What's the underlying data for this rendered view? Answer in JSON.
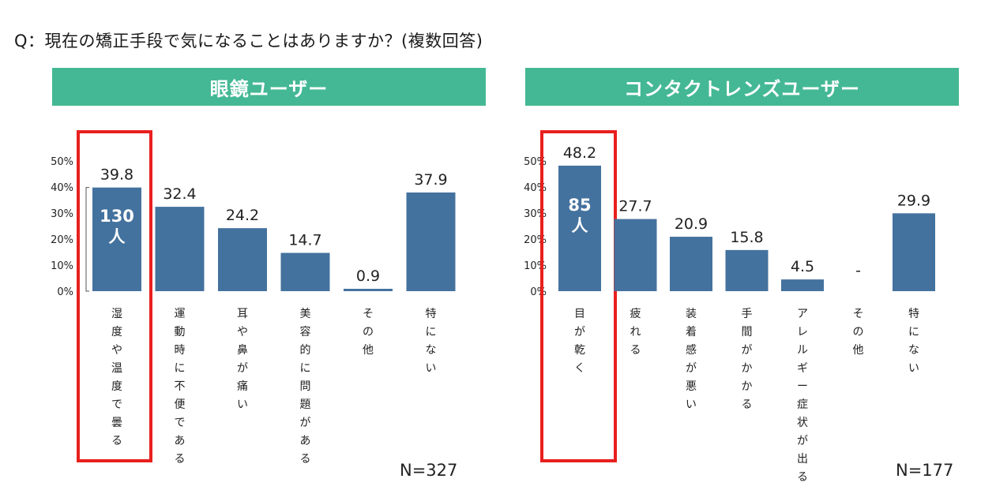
{
  "question": "Q：現在の矯正手段で気になることはありますか？(複数回答)",
  "colors": {
    "banner": "#44b894",
    "bar": "#44729e",
    "highlight": "#e8201e"
  },
  "chart_data": [
    {
      "type": "bar",
      "title": "眼鏡ユーザー",
      "categories": [
        "湿度や温度で曇る",
        "運動時に不便である",
        "耳や鼻が痛い",
        "美容的に問題がある",
        "その他",
        "特にない"
      ],
      "values": [
        39.8,
        32.4,
        24.2,
        14.7,
        0.9,
        37.9
      ],
      "value_labels": [
        "39.8",
        "32.4",
        "24.2",
        "14.7",
        "0.9",
        "37.9"
      ],
      "yticks": [
        "0%",
        "10%",
        "20%",
        "30%",
        "40%",
        "50%"
      ],
      "ylim": [
        0,
        50
      ],
      "highlight_index": 0,
      "highlight_bar_text": [
        "130",
        "人"
      ],
      "n_label": "N=327",
      "grid": false
    },
    {
      "type": "bar",
      "title": "コンタクトレンズユーザー",
      "categories": [
        "目が乾く",
        "疲れる",
        "装着感が悪い",
        "手間がかかる",
        "アレルギー症状が出る",
        "その他",
        "特にない"
      ],
      "values": [
        48.2,
        27.7,
        20.9,
        15.8,
        4.5,
        0,
        29.9
      ],
      "value_labels": [
        "48.2",
        "27.7",
        "20.9",
        "15.8",
        "4.5",
        "-",
        "29.9"
      ],
      "yticks": [
        "0%",
        "10%",
        "20%",
        "30%",
        "40%",
        "50%"
      ],
      "ylim": [
        0,
        50
      ],
      "highlight_index": 0,
      "highlight_bar_text": [
        "85",
        "人"
      ],
      "n_label": "N=177",
      "grid": false
    }
  ]
}
